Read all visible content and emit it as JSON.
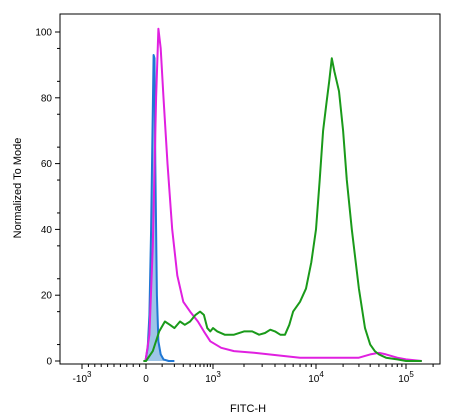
{
  "chart_data": {
    "type": "line",
    "title": "",
    "xlabel": "FITC-H",
    "ylabel": "Normalized To Mode",
    "x_scale": "biexponential",
    "x_ticks": [
      "-10^3",
      "0",
      "10^3",
      "10^4",
      "10^5"
    ],
    "y_ticks": [
      "0",
      "20",
      "40",
      "60",
      "80",
      "100"
    ],
    "ylim": [
      0,
      100
    ],
    "grid": false,
    "legend": "none",
    "series": [
      {
        "color": "#1f77d4",
        "fill": "#9ec5e8",
        "points": [
          [
            -30,
            0
          ],
          [
            -10,
            0
          ],
          [
            0,
            1
          ],
          [
            10,
            4
          ],
          [
            20,
            14
          ],
          [
            30,
            40
          ],
          [
            38,
            70
          ],
          [
            45,
            93
          ],
          [
            50,
            92
          ],
          [
            55,
            60
          ],
          [
            60,
            40
          ],
          [
            65,
            20
          ],
          [
            75,
            6
          ],
          [
            90,
            2
          ],
          [
            110,
            0.5
          ],
          [
            150,
            0
          ],
          [
            200,
            0
          ]
        ]
      },
      {
        "color": "#e020e0",
        "fill": "none",
        "points": [
          [
            -40,
            0
          ],
          [
            -10,
            0
          ],
          [
            0,
            1
          ],
          [
            20,
            8
          ],
          [
            40,
            35
          ],
          [
            60,
            80
          ],
          [
            75,
            101
          ],
          [
            90,
            95
          ],
          [
            110,
            80
          ],
          [
            140,
            60
          ],
          [
            180,
            40
          ],
          [
            230,
            26
          ],
          [
            300,
            18
          ],
          [
            400,
            15
          ],
          [
            550,
            12
          ],
          [
            700,
            9
          ],
          [
            900,
            6
          ],
          [
            1200,
            4
          ],
          [
            1600,
            3
          ],
          [
            2500,
            2.5
          ],
          [
            3500,
            2
          ],
          [
            5000,
            1.5
          ],
          [
            7000,
            1
          ],
          [
            10000,
            1
          ],
          [
            20000,
            1
          ],
          [
            30000,
            1
          ],
          [
            40000,
            2
          ],
          [
            50000,
            2.5
          ],
          [
            60000,
            2
          ],
          [
            80000,
            1
          ],
          [
            100000,
            0.5
          ],
          [
            150000,
            0
          ]
        ]
      },
      {
        "color": "#1a9a1a",
        "fill": "none",
        "points": [
          [
            -40,
            0
          ],
          [
            0,
            0
          ],
          [
            40,
            3
          ],
          [
            80,
            9
          ],
          [
            120,
            12
          ],
          [
            160,
            11
          ],
          [
            200,
            10
          ],
          [
            260,
            12
          ],
          [
            320,
            11
          ],
          [
            400,
            12
          ],
          [
            500,
            14
          ],
          [
            600,
            15
          ],
          [
            700,
            14
          ],
          [
            800,
            10
          ],
          [
            900,
            9
          ],
          [
            1000,
            10
          ],
          [
            1100,
            9
          ],
          [
            1300,
            8
          ],
          [
            1600,
            8
          ],
          [
            2000,
            9
          ],
          [
            2400,
            9
          ],
          [
            2800,
            8
          ],
          [
            3200,
            8.5
          ],
          [
            3600,
            9.5
          ],
          [
            4000,
            9
          ],
          [
            4500,
            8
          ],
          [
            5000,
            8
          ],
          [
            5500,
            11
          ],
          [
            6000,
            15
          ],
          [
            7000,
            18
          ],
          [
            8000,
            22
          ],
          [
            9000,
            30
          ],
          [
            10000,
            40
          ],
          [
            11000,
            55
          ],
          [
            12000,
            70
          ],
          [
            13000,
            78
          ],
          [
            14000,
            85
          ],
          [
            15000,
            92
          ],
          [
            16000,
            88
          ],
          [
            18000,
            82
          ],
          [
            20000,
            70
          ],
          [
            22000,
            55
          ],
          [
            25000,
            40
          ],
          [
            30000,
            22
          ],
          [
            35000,
            10
          ],
          [
            40000,
            5
          ],
          [
            45000,
            3
          ],
          [
            50000,
            2
          ],
          [
            60000,
            1
          ],
          [
            80000,
            0.5
          ],
          [
            100000,
            0
          ],
          [
            150000,
            0
          ]
        ]
      }
    ]
  }
}
